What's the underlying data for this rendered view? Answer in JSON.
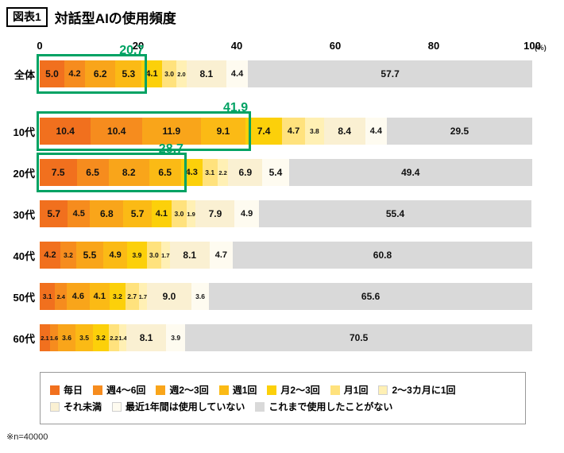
{
  "title": {
    "tag": "図表1",
    "text": "対話型AIの使用頻度"
  },
  "axis": {
    "ticks": [
      0,
      20,
      40,
      60,
      80,
      100
    ],
    "unit": "(%)"
  },
  "note": "※n=40000",
  "highlight_color": "#00a263",
  "chart_data": {
    "type": "bar",
    "stacked": true,
    "orientation": "horizontal",
    "xlim": [
      0,
      100
    ],
    "categories": [
      "全体",
      "10代",
      "20代",
      "30代",
      "40代",
      "50代",
      "60代"
    ],
    "series_labels": [
      "毎日",
      "週4〜6回",
      "週2〜3回",
      "週1回",
      "月2〜3回",
      "月1回",
      "2〜3カ月に1回",
      "それ未満",
      "最近1年間は使用していない",
      "これまで使用したことがない"
    ],
    "series_colors": [
      "#f1701e",
      "#f68c1e",
      "#f9a51a",
      "#fbba15",
      "#fcd00a",
      "#ffe27d",
      "#fff0b4",
      "#faf0d2",
      "#fefbf0",
      "#d9d9d9"
    ],
    "rows": [
      {
        "label": "全体",
        "values": [
          5.0,
          4.2,
          6.2,
          5.3,
          4.1,
          3.0,
          2.0,
          8.1,
          4.4,
          57.7
        ],
        "highlight": {
          "span": 4,
          "label": "20.7"
        }
      },
      {
        "label": "10代",
        "values": [
          10.4,
          10.4,
          11.9,
          9.1,
          7.4,
          4.7,
          3.8,
          8.4,
          4.4,
          29.5
        ],
        "highlight": {
          "span": 4,
          "label": "41.9"
        }
      },
      {
        "label": "20代",
        "values": [
          7.5,
          6.5,
          8.2,
          6.5,
          4.3,
          3.1,
          2.2,
          6.9,
          5.4,
          49.4
        ],
        "highlight": {
          "span": 4,
          "label": "28.7"
        }
      },
      {
        "label": "30代",
        "values": [
          5.7,
          4.5,
          6.8,
          5.7,
          4.1,
          3.0,
          1.9,
          7.9,
          4.9,
          55.4
        ]
      },
      {
        "label": "40代",
        "values": [
          4.2,
          3.2,
          5.5,
          4.9,
          3.9,
          3.0,
          1.7,
          8.1,
          4.7,
          60.8
        ]
      },
      {
        "label": "50代",
        "values": [
          3.1,
          2.4,
          4.6,
          4.1,
          3.2,
          2.7,
          1.7,
          9.0,
          3.6,
          65.6
        ]
      },
      {
        "label": "60代",
        "values": [
          2.1,
          1.6,
          3.6,
          3.5,
          3.2,
          2.2,
          1.4,
          8.1,
          3.9,
          70.5
        ]
      }
    ],
    "legend_rows": [
      [
        "毎日",
        "週4〜6回",
        "週2〜3回",
        "週1回",
        "月2〜3回",
        "月1回",
        "2〜3カ月に1回"
      ],
      [
        "それ未満",
        "最近1年間は使用していない",
        "これまで使用したことがない"
      ]
    ]
  }
}
